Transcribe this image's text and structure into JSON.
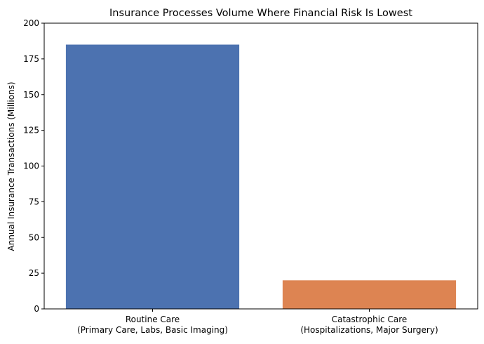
{
  "chart_data": {
    "type": "bar",
    "title": "Insurance Processes Volume Where Financial Risk Is Lowest",
    "xlabel": "",
    "ylabel": "Annual Insurance Transactions (Millions)",
    "categories": [
      [
        "Routine Care",
        "(Primary Care, Labs, Basic Imaging)"
      ],
      [
        "Catastrophic Care",
        "(Hospitalizations, Major Surgery)"
      ]
    ],
    "values": [
      185,
      20
    ],
    "colors": [
      "#4c72b0",
      "#dd8452"
    ],
    "ylim": [
      0,
      200
    ],
    "yticks": [
      0,
      25,
      50,
      75,
      100,
      125,
      150,
      175,
      200
    ],
    "grid": false,
    "legend": "none"
  }
}
